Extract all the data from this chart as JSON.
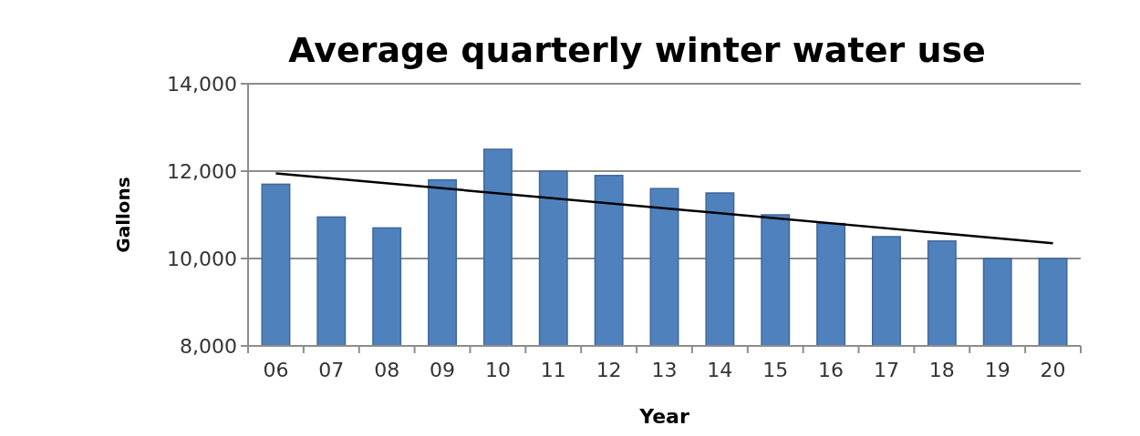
{
  "chart_data": {
    "type": "bar",
    "title": "Average quarterly winter water use",
    "xlabel": "Year",
    "ylabel": "Gallons",
    "categories": [
      "06",
      "07",
      "08",
      "09",
      "10",
      "11",
      "12",
      "13",
      "14",
      "15",
      "16",
      "17",
      "18",
      "19",
      "20"
    ],
    "series": [
      {
        "color": "#4f81bd",
        "values": [
          11700,
          10950,
          10700,
          11800,
          12500,
          12000,
          11900,
          11600,
          11500,
          11000,
          10800,
          10500,
          10400,
          10000,
          10000
        ]
      },
      {
        "type": "line",
        "color": "#000000",
        "x": [
          "06",
          "20"
        ],
        "values": [
          11950,
          10350
        ]
      }
    ],
    "ylim": [
      8000,
      14000
    ],
    "yticks": [
      {
        "value": 8000,
        "label": "8,000"
      },
      {
        "value": 10000,
        "label": "10,000"
      },
      {
        "value": 12000,
        "label": "12,000"
      },
      {
        "value": 14000,
        "label": "14,000"
      }
    ],
    "grid": "y"
  }
}
